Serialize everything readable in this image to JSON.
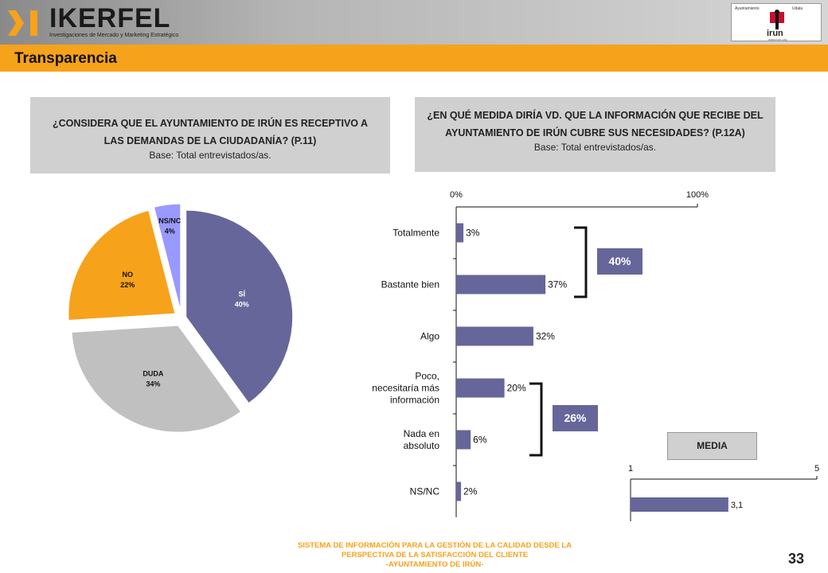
{
  "header": {
    "brand": "IKERFEL",
    "tagline": "Investigaciones de Mercado y Marketing Estratégico",
    "partner_left": "Ayuntamiento",
    "partner_right": "Udala",
    "partner_name": "irun",
    "partner_url": "www.irun.org"
  },
  "page": {
    "title": "Transparencia",
    "number": "33"
  },
  "question1": {
    "text": "¿CONSIDERA QUE EL AYUNTAMIENTO DE IRÚN ES RECEPTIVO A LAS DEMANDAS DE LA CIUDADANÍA? (P.11)",
    "base": "Base: Total entrevistados/as."
  },
  "question2": {
    "text": "¿EN QUÉ MEDIDA DIRÍA VD. QUE LA INFORMACIÓN QUE RECIBE DEL AYUNTAMIENTO DE IRÚN CUBRE SUS NECESIDADES? (P.12A)",
    "base": "Base: Total entrevistados/as."
  },
  "brackets": {
    "top": "40%",
    "bottom": "26%"
  },
  "media_label": "MEDIA",
  "footer": {
    "line1": "SISTEMA DE INFORMACIÓN PARA LA GESTIÓN DE LA CALIDAD DESDE LA",
    "line2": "PERSPECTIVA DE LA SATISFACCIÓN DEL CLIENTE",
    "line3": "-AYUNTAMIENTO DE IRÚN-"
  },
  "colors": {
    "orange": "#f7a21b",
    "bar": "#66669a",
    "si": "#66669a",
    "duda": "#c0c0c0",
    "no": "#f7a21b",
    "nsnc": "#9999ff"
  },
  "chart_data": [
    {
      "type": "pie",
      "slices": [
        {
          "label": "SÍ",
          "value": 40,
          "value_label": "40%"
        },
        {
          "label": "DUDA",
          "value": 34,
          "value_label": "34%"
        },
        {
          "label": "NO",
          "value": 22,
          "value_label": "22%"
        },
        {
          "label": "NS/NC",
          "value": 4,
          "value_label": "4%"
        }
      ]
    },
    {
      "type": "bar",
      "orientation": "horizontal",
      "categories": [
        [
          "Totalmente"
        ],
        [
          "Bastante bien"
        ],
        [
          "Algo"
        ],
        [
          "Poco,",
          "necesitaría más",
          "información"
        ],
        [
          "Nada en",
          "absoluto"
        ],
        [
          "NS/NC"
        ]
      ],
      "values": [
        3,
        37,
        32,
        20,
        6,
        2
      ],
      "value_labels": [
        "3%",
        "37%",
        "32%",
        "20%",
        "6%",
        "2%"
      ],
      "xlim": [
        0,
        100
      ],
      "x_ticks": [
        "0%",
        "100%"
      ]
    },
    {
      "type": "bar",
      "orientation": "horizontal",
      "title": "MEDIA",
      "values": [
        3.1
      ],
      "value_labels": [
        "3,1"
      ],
      "xlim": [
        1,
        5
      ],
      "x_ticks": [
        "1",
        "5"
      ]
    }
  ]
}
